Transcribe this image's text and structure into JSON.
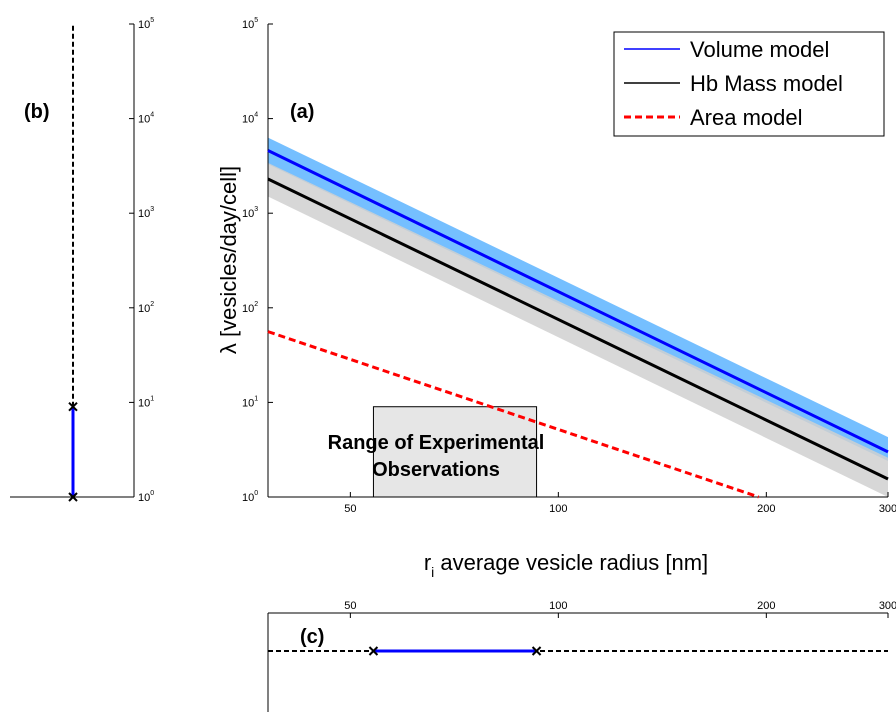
{
  "chart_data": [
    {
      "panel": "(a)",
      "type": "line",
      "x_scale": "log",
      "y_scale": "log",
      "xlim": [
        38,
        300
      ],
      "ylim": [
        1,
        100000
      ],
      "xticks": [
        50,
        100,
        200,
        300
      ],
      "yticks": [
        1,
        10,
        100,
        1000,
        10000,
        100000
      ],
      "xlabel_prefix": "r",
      "xlabel_sub": "i",
      "xlabel_rest": " average vesicle radius [nm]",
      "ylabel": "λ  [vesicles/day/cell]",
      "legend": "top-right",
      "series": [
        {
          "name": "Volume model",
          "color": "#0000ff",
          "style": "solid",
          "x": [
            38,
            300
          ],
          "y": [
            4600,
            3.0
          ],
          "band_color": "#66b8ff",
          "band_lo": [
            3300,
            2.4
          ],
          "band_hi": [
            6300,
            4.3
          ]
        },
        {
          "name": "Hb Mass model",
          "color": "#000000",
          "style": "solid",
          "x": [
            38,
            300
          ],
          "y": [
            2300,
            1.55
          ],
          "band_color": "#d0d0d0",
          "band_lo": [
            1500,
            1.0
          ],
          "band_hi": [
            3400,
            2.6
          ]
        },
        {
          "name": "Area model",
          "color": "#ff0000",
          "style": "dashed",
          "x": [
            38,
            195
          ],
          "y": [
            56,
            1.0
          ]
        }
      ],
      "annotation": {
        "line1": "Range of Experimental",
        "line2": "Observations",
        "x": [
          54,
          93
        ],
        "y": [
          1,
          9
        ]
      }
    },
    {
      "panel": "(b)",
      "type": "line",
      "y_scale": "log",
      "ylim": [
        1,
        100000
      ],
      "yticks": [
        1,
        10,
        100,
        1000,
        10000,
        100000
      ],
      "range": [
        1,
        9
      ],
      "extension": [
        9,
        100000
      ]
    },
    {
      "panel": "(c)",
      "type": "line",
      "x_scale": "log",
      "xlim": [
        38,
        300
      ],
      "xticks": [
        50,
        100,
        200,
        300
      ],
      "range": [
        54,
        93
      ],
      "extension": [
        38,
        300
      ]
    }
  ]
}
